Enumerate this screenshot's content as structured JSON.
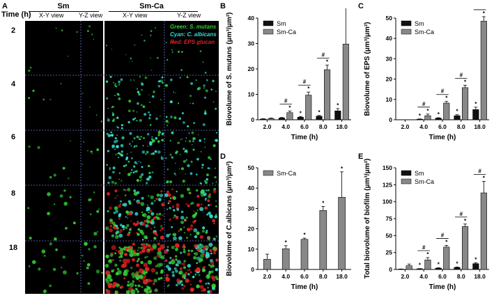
{
  "panel_a": {
    "label": "A",
    "time_header": "Time (h)",
    "group_sm": "Sm",
    "group_smca": "Sm-Ca",
    "xy_view": "X-Y view",
    "yz_view": "Y-Z view",
    "rows": [
      "2",
      "4",
      "6",
      "8",
      "18"
    ],
    "legend_green": "Green: S. mutans",
    "legend_cyan": "Cyan: C. albicans",
    "legend_red": "Red: EPS glucan",
    "colors": {
      "green": "#33cc33",
      "cyan": "#33e0d0",
      "red": "#e02020"
    }
  },
  "chart_data": [
    {
      "panel": "B",
      "type": "bar",
      "categories": [
        "2.0",
        "4.0",
        "6.0",
        "8.0",
        "18.0"
      ],
      "series": [
        {
          "name": "Sm",
          "color": "#111111",
          "values": [
            0.3,
            0.7,
            1.0,
            1.4,
            3.5
          ],
          "errors": [
            0.1,
            0.2,
            0.3,
            0.3,
            0.9
          ]
        },
        {
          "name": "Sm-Ca",
          "color": "#888888",
          "values": [
            0.5,
            2.8,
            9.7,
            19.7,
            29.8
          ],
          "errors": [
            0.2,
            0.6,
            1.2,
            1.8,
            17.0
          ]
        }
      ],
      "star_sm": [
        false,
        false,
        true,
        true,
        true
      ],
      "star_smca": [
        false,
        true,
        true,
        true,
        true
      ],
      "hash": [
        false,
        true,
        true,
        true,
        true
      ],
      "xlabel": "Time (h)",
      "ylabel": "Biovolume of S. mutans (μm³/μm²)",
      "ylim": [
        0,
        40
      ],
      "yticks": [
        0,
        10,
        20,
        30,
        40
      ],
      "legend": "top-left"
    },
    {
      "panel": "C",
      "type": "bar",
      "categories": [
        "2.0",
        "4.0",
        "6.0",
        "8.0",
        "18.0"
      ],
      "series": [
        {
          "name": "Sm",
          "color": "#111111",
          "values": [
            0,
            0.3,
            0.8,
            2.0,
            5.0
          ],
          "errors": [
            0,
            0.1,
            0.2,
            0.5,
            1.2
          ]
        },
        {
          "name": "Sm-Ca",
          "color": "#888888",
          "values": [
            0,
            2.0,
            8.2,
            15.8,
            48.5
          ],
          "errors": [
            0,
            0.8,
            0.8,
            1.2,
            2.2
          ]
        }
      ],
      "star_sm": [
        false,
        true,
        true,
        true,
        true
      ],
      "star_smca": [
        false,
        true,
        true,
        true,
        true
      ],
      "hash": [
        false,
        true,
        true,
        true,
        true
      ],
      "xlabel": "Time (h)",
      "ylabel": "Biovolume of EPS (μm³/μm²)",
      "ylim": [
        0,
        50
      ],
      "yticks": [
        0,
        10,
        20,
        30,
        40,
        50
      ],
      "legend": "top-left"
    },
    {
      "panel": "D",
      "type": "bar",
      "categories": [
        "2.0",
        "4.0",
        "6.0",
        "8.0",
        "18.0"
      ],
      "series": [
        {
          "name": "Sm-Ca",
          "color": "#888888",
          "values": [
            5.0,
            10.2,
            14.8,
            29.0,
            35.5
          ],
          "errors": [
            2.5,
            1.5,
            0.6,
            2.0,
            12.5
          ]
        }
      ],
      "star_smca": [
        false,
        true,
        true,
        true,
        true
      ],
      "xlabel": "Time (h)",
      "ylabel": "Biovolume of C.albicans (μm³/μm²)",
      "ylim": [
        0,
        50
      ],
      "yticks": [
        0,
        10,
        20,
        30,
        40,
        50
      ],
      "legend": "top-left"
    },
    {
      "panel": "E",
      "type": "bar",
      "categories": [
        "2.0",
        "4.0",
        "6.0",
        "8.0",
        "18.0"
      ],
      "series": [
        {
          "name": "Sm",
          "color": "#111111",
          "values": [
            0.5,
            1.0,
            2.0,
            3.0,
            8.5
          ],
          "errors": [
            0.2,
            0.3,
            0.5,
            0.6,
            1.5
          ]
        },
        {
          "name": "Sm-Ca",
          "color": "#888888",
          "values": [
            5.5,
            14.0,
            33.0,
            63.5,
            113.0
          ],
          "errors": [
            2.5,
            3.5,
            2.5,
            3.5,
            17.0
          ]
        }
      ],
      "star_sm": [
        false,
        true,
        true,
        true,
        true
      ],
      "star_smca": [
        false,
        true,
        true,
        true,
        true
      ],
      "hash": [
        false,
        true,
        true,
        true,
        true
      ],
      "xlabel": "Time (h)",
      "ylabel": "Total biovolume of biofilm (μm³/μm²)",
      "ylim": [
        0,
        150
      ],
      "yticks": [
        0,
        25,
        50,
        75,
        100,
        125,
        150
      ],
      "legend": "top-left"
    }
  ]
}
